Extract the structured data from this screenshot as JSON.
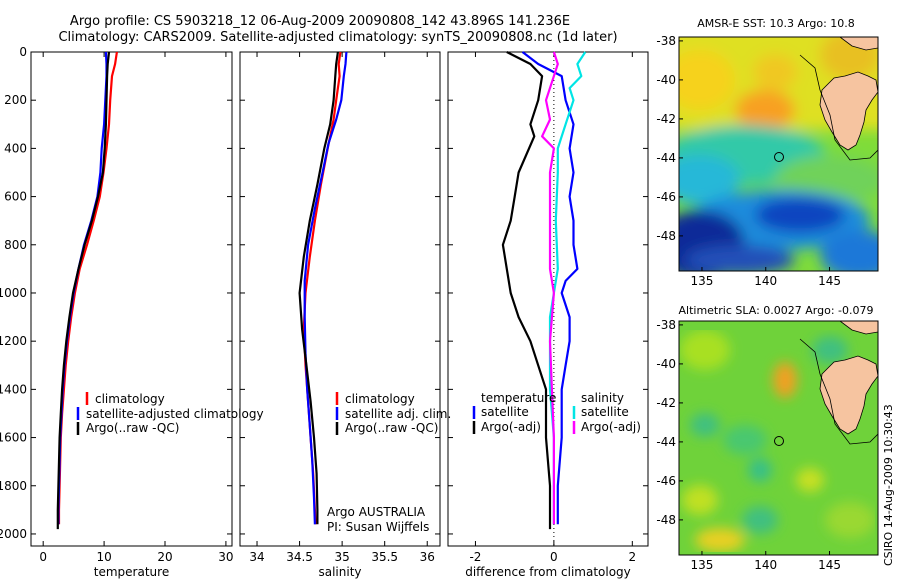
{
  "title_line1": "Argo profile: CS 5903218_12 06-Aug-2009 20090808_142 43.896S 141.236E",
  "title_line2": "Climatology: CARS2009. Satellite-adjusted climatology: synTS_20090808.nc (1d later)",
  "credit_vertical": "CSIRO 14-Aug-2009 10:30:43",
  "annotation_argo": "Argo AUSTRALIA",
  "annotation_pi": "PI: Susan Wijffels",
  "map1_title": "AMSR-E SST: 10.3 Argo: 10.8",
  "map2_title": "Altimetric SLA: 0.0027 Argo: -0.079",
  "colors": {
    "climatology": "#ff0000",
    "satellite": "#0000ff",
    "argo": "#000000",
    "sal_satellite": "#00e5e5",
    "sal_argo": "#ff00ff"
  },
  "chart_data": [
    {
      "type": "line",
      "panel": "temperature",
      "xlabel": "temperature",
      "ylabel": "",
      "xlim": [
        -2,
        31
      ],
      "ylim": [
        0,
        2050
      ],
      "xticks": [
        0,
        10,
        20,
        30
      ],
      "yticks": [
        0,
        200,
        400,
        600,
        800,
        1000,
        1200,
        1400,
        1600,
        1800,
        2000
      ],
      "y_reversed": true,
      "legend": [
        "climatology",
        "satellite-adjusted climatology",
        "Argo(..raw -QC)"
      ],
      "series": [
        {
          "name": "climatology",
          "color": "#ff0000",
          "points": [
            [
              12.1,
              0
            ],
            [
              11.8,
              50
            ],
            [
              11.3,
              100
            ],
            [
              11.0,
              200
            ],
            [
              10.8,
              300
            ],
            [
              10.4,
              400
            ],
            [
              9.9,
              500
            ],
            [
              9.3,
              600
            ],
            [
              8.3,
              700
            ],
            [
              7.2,
              800
            ],
            [
              6.0,
              900
            ],
            [
              5.2,
              1000
            ],
            [
              4.6,
              1100
            ],
            [
              4.1,
              1200
            ],
            [
              3.7,
              1300
            ],
            [
              3.4,
              1400
            ],
            [
              3.1,
              1500
            ],
            [
              2.9,
              1600
            ],
            [
              2.8,
              1700
            ],
            [
              2.7,
              1800
            ],
            [
              2.6,
              1900
            ],
            [
              2.6,
              1960
            ]
          ]
        },
        {
          "name": "satellite-adjusted climatology",
          "color": "#0000ff",
          "points": [
            [
              10.3,
              0
            ],
            [
              10.4,
              50
            ],
            [
              10.4,
              100
            ],
            [
              10.2,
              200
            ],
            [
              10.0,
              300
            ],
            [
              9.6,
              400
            ],
            [
              9.4,
              500
            ],
            [
              8.9,
              600
            ],
            [
              7.9,
              700
            ],
            [
              6.7,
              800
            ],
            [
              5.8,
              900
            ],
            [
              5.0,
              1000
            ],
            [
              4.4,
              1100
            ],
            [
              3.9,
              1200
            ],
            [
              3.5,
              1300
            ],
            [
              3.2,
              1400
            ],
            [
              3.0,
              1500
            ],
            [
              2.8,
              1600
            ],
            [
              2.7,
              1700
            ],
            [
              2.6,
              1800
            ],
            [
              2.5,
              1900
            ],
            [
              2.5,
              1960
            ]
          ]
        },
        {
          "name": "Argo(..raw -QC)",
          "color": "#000000",
          "points": [
            [
              10.8,
              0
            ],
            [
              10.6,
              50
            ],
            [
              10.5,
              100
            ],
            [
              10.4,
              200
            ],
            [
              10.3,
              300
            ],
            [
              10.1,
              400
            ],
            [
              9.8,
              500
            ],
            [
              9.0,
              600
            ],
            [
              8.0,
              700
            ],
            [
              6.8,
              800
            ],
            [
              5.8,
              900
            ],
            [
              4.9,
              1000
            ],
            [
              4.3,
              1100
            ],
            [
              3.8,
              1200
            ],
            [
              3.4,
              1300
            ],
            [
              3.1,
              1400
            ],
            [
              2.9,
              1500
            ],
            [
              2.7,
              1600
            ],
            [
              2.6,
              1700
            ],
            [
              2.5,
              1800
            ],
            [
              2.4,
              1900
            ],
            [
              2.4,
              1980
            ]
          ]
        }
      ]
    },
    {
      "type": "line",
      "panel": "salinity",
      "xlabel": "salinity",
      "ylabel": "",
      "xlim": [
        33.8,
        36.15
      ],
      "ylim": [
        0,
        2050
      ],
      "xticks": [
        34,
        34.5,
        35,
        35.5,
        36
      ],
      "y_reversed": true,
      "legend": [
        "climatology",
        "satellite adj. clim.",
        "Argo(..raw -QC)"
      ],
      "series": [
        {
          "name": "climatology",
          "color": "#ff0000",
          "points": [
            [
              34.98,
              0
            ],
            [
              34.96,
              50
            ],
            [
              34.97,
              100
            ],
            [
              34.93,
              200
            ],
            [
              34.9,
              280
            ],
            [
              34.83,
              400
            ],
            [
              34.75,
              550
            ],
            [
              34.68,
              700
            ],
            [
              34.62,
              850
            ],
            [
              34.57,
              1000
            ],
            [
              34.55,
              1150
            ],
            [
              34.57,
              1300
            ],
            [
              34.6,
              1450
            ],
            [
              34.63,
              1600
            ],
            [
              34.66,
              1750
            ],
            [
              34.68,
              1900
            ],
            [
              34.69,
              1960
            ]
          ]
        },
        {
          "name": "satellite adj. clim.",
          "color": "#0000ff",
          "points": [
            [
              35.05,
              0
            ],
            [
              35.04,
              50
            ],
            [
              35.02,
              100
            ],
            [
              34.99,
              200
            ],
            [
              34.93,
              280
            ],
            [
              34.84,
              380
            ],
            [
              34.77,
              500
            ],
            [
              34.68,
              650
            ],
            [
              34.6,
              800
            ],
            [
              34.56,
              950
            ],
            [
              34.56,
              1100
            ],
            [
              34.57,
              1250
            ],
            [
              34.59,
              1400
            ],
            [
              34.62,
              1550
            ],
            [
              34.65,
              1700
            ],
            [
              34.67,
              1850
            ],
            [
              34.68,
              1960
            ]
          ]
        },
        {
          "name": "Argo(..raw -QC)",
          "color": "#000000",
          "points": [
            [
              34.95,
              0
            ],
            [
              34.93,
              50
            ],
            [
              34.92,
              100
            ],
            [
              34.9,
              200
            ],
            [
              34.86,
              300
            ],
            [
              34.79,
              400
            ],
            [
              34.71,
              550
            ],
            [
              34.62,
              700
            ],
            [
              34.55,
              850
            ],
            [
              34.5,
              1000
            ],
            [
              34.53,
              1150
            ],
            [
              34.58,
              1300
            ],
            [
              34.63,
              1450
            ],
            [
              34.67,
              1600
            ],
            [
              34.7,
              1750
            ],
            [
              34.71,
              1900
            ],
            [
              34.71,
              1960
            ]
          ]
        }
      ]
    },
    {
      "type": "line",
      "panel": "difference",
      "xlabel": "difference from climatology",
      "ylabel": "",
      "xlim": [
        -2.7,
        2.4
      ],
      "ylim": [
        0,
        2050
      ],
      "xticks": [
        -2,
        0,
        2
      ],
      "y_reversed": true,
      "legend_left_title": "temperature",
      "legend_left": [
        "satellite",
        "Argo(-adj)"
      ],
      "legend_right_title": "salinity",
      "legend_right": [
        "satellite",
        "Argo(-adj)"
      ],
      "series": [
        {
          "name": "satellite",
          "group": "temperature",
          "color": "#0000ff",
          "points": [
            [
              -0.8,
              0
            ],
            [
              -0.4,
              50
            ],
            [
              0.2,
              100
            ],
            [
              0.3,
              200
            ],
            [
              0.5,
              300
            ],
            [
              0.4,
              400
            ],
            [
              0.5,
              500
            ],
            [
              0.4,
              600
            ],
            [
              0.5,
              700
            ],
            [
              0.5,
              800
            ],
            [
              0.6,
              900
            ],
            [
              0.3,
              950
            ],
            [
              0.2,
              1000
            ],
            [
              0.4,
              1100
            ],
            [
              0.4,
              1200
            ],
            [
              0.3,
              1300
            ],
            [
              0.2,
              1400
            ],
            [
              0.2,
              1600
            ],
            [
              0.1,
              1800
            ],
            [
              0.1,
              1960
            ]
          ]
        },
        {
          "name": "Argo(-adj)",
          "group": "temperature",
          "color": "#000000",
          "points": [
            [
              -1.2,
              0
            ],
            [
              -0.6,
              50
            ],
            [
              -0.3,
              100
            ],
            [
              -0.4,
              200
            ],
            [
              -0.6,
              300
            ],
            [
              -0.5,
              350
            ],
            [
              -0.9,
              500
            ],
            [
              -1.0,
              600
            ],
            [
              -1.1,
              700
            ],
            [
              -1.3,
              800
            ],
            [
              -1.2,
              900
            ],
            [
              -1.1,
              1000
            ],
            [
              -0.9,
              1100
            ],
            [
              -0.6,
              1200
            ],
            [
              -0.4,
              1300
            ],
            [
              -0.2,
              1400
            ],
            [
              -0.2,
              1600
            ],
            [
              -0.1,
              1800
            ],
            [
              -0.1,
              1980
            ]
          ]
        },
        {
          "name": "satellite",
          "group": "salinity",
          "color": "#00e5e5",
          "points": [
            [
              0.8,
              0
            ],
            [
              0.6,
              50
            ],
            [
              0.7,
              100
            ],
            [
              0.4,
              150
            ],
            [
              0.5,
              200
            ],
            [
              0.3,
              300
            ],
            [
              0.1,
              400
            ],
            [
              0.1,
              500
            ],
            [
              0.05,
              700
            ],
            [
              0.1,
              900
            ],
            [
              0.0,
              1000
            ],
            [
              -0.1,
              1100
            ],
            [
              -0.1,
              1200
            ],
            [
              -0.1,
              1400
            ],
            [
              0.0,
              1600
            ],
            [
              0.0,
              1800
            ],
            [
              0.0,
              1960
            ]
          ]
        },
        {
          "name": "Argo(-adj)",
          "group": "salinity",
          "color": "#ff00ff",
          "points": [
            [
              0.0,
              0
            ],
            [
              0.1,
              50
            ],
            [
              0.0,
              100
            ],
            [
              -0.2,
              200
            ],
            [
              -0.1,
              280
            ],
            [
              -0.3,
              350
            ],
            [
              0.0,
              400
            ],
            [
              -0.1,
              500
            ],
            [
              -0.1,
              700
            ],
            [
              -0.1,
              900
            ],
            [
              0.0,
              1000
            ],
            [
              -0.1,
              1200
            ],
            [
              -0.05,
              1400
            ],
            [
              0.0,
              1600
            ],
            [
              0.0,
              1800
            ],
            [
              0.0,
              1960
            ]
          ]
        }
      ]
    },
    {
      "type": "heatmap",
      "panel": "map-sst",
      "title": "AMSR-E SST: 10.3 Argo: 10.8",
      "xticks": [
        135,
        140,
        145
      ],
      "yticks": [
        -38,
        -40,
        -42,
        -44,
        -46,
        -48
      ],
      "xlim": [
        133.2,
        148.8
      ],
      "ylim": [
        -49.8,
        -37.8
      ],
      "argo_position": [
        141.236,
        -43.896
      ]
    },
    {
      "type": "heatmap",
      "panel": "map-sla",
      "title": "Altimetric SLA: 0.0027 Argo: -0.079",
      "xticks": [
        135,
        140,
        145
      ],
      "yticks": [
        -38,
        -40,
        -42,
        -44,
        -46,
        -48
      ],
      "xlim": [
        133.2,
        148.8
      ],
      "ylim": [
        -49.8,
        -37.8
      ],
      "argo_position": [
        141.236,
        -43.896
      ]
    }
  ]
}
